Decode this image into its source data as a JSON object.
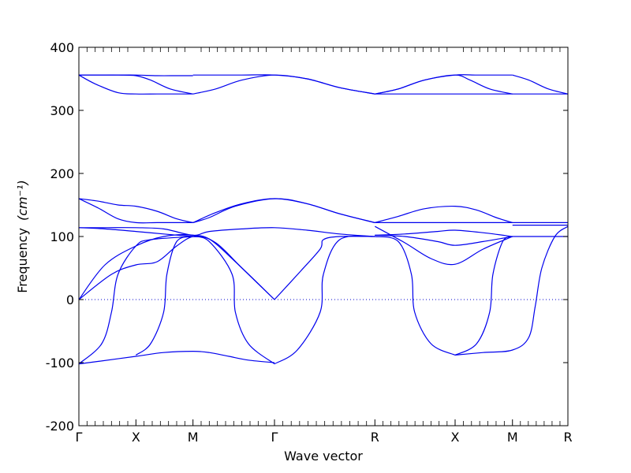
{
  "chart_data": {
    "type": "line",
    "title": "",
    "xlabel": "Wave vector",
    "ylabel": "Frequency",
    "ylabel_unit": "(cm⁻¹)",
    "ylim": [
      -200,
      400
    ],
    "yticks": [
      -200,
      -100,
      0,
      100,
      200,
      300,
      400
    ],
    "xlim": [
      0,
      7.5
    ],
    "high_symmetry_points": [
      {
        "label": "Γ",
        "x": 0
      },
      {
        "label": "X",
        "x": 0.875
      },
      {
        "label": "M",
        "x": 1.75
      },
      {
        "label": "Γ",
        "x": 3.0
      },
      {
        "label": "R",
        "x": 4.54
      },
      {
        "label": "X",
        "x": 5.77
      },
      {
        "label": "M",
        "x": 6.65
      },
      {
        "label": "R",
        "x": 7.5
      }
    ],
    "zero_line": true,
    "grid": false,
    "legend": "none",
    "series": [
      {
        "x": [
          0,
          0.3,
          0.6,
          0.875,
          1.2,
          1.5,
          1.75
        ],
        "values": [
          356,
          356,
          356,
          356,
          355,
          355,
          355
        ]
      },
      {
        "x": [
          1.75,
          2.1,
          2.5,
          3.0,
          3.5,
          4.0,
          4.54
        ],
        "values": [
          356,
          356,
          356,
          356,
          350,
          336,
          326
        ]
      },
      {
        "x": [
          0,
          0.25,
          0.6,
          0.875,
          1.2,
          1.5,
          1.75
        ],
        "values": [
          356,
          342,
          328,
          326,
          326,
          326,
          326
        ]
      },
      {
        "x": [
          1.75,
          2.1,
          2.5,
          3.0,
          3.5,
          4.0,
          4.54
        ],
        "values": [
          326,
          334,
          348,
          356,
          350,
          336,
          326
        ]
      },
      {
        "x": [
          0,
          0.3,
          0.6,
          0.875,
          1.1,
          1.4,
          1.75
        ],
        "values": [
          356,
          356,
          356,
          355,
          348,
          334,
          326
        ]
      },
      {
        "x": [
          4.54,
          4.9,
          5.3,
          5.77,
          6.1,
          6.4,
          6.65
        ],
        "values": [
          326,
          334,
          348,
          356,
          356,
          356,
          356
        ]
      },
      {
        "x": [
          6.65,
          6.9,
          7.2,
          7.5
        ],
        "values": [
          356,
          348,
          334,
          326
        ]
      },
      {
        "x": [
          4.54,
          4.9,
          5.3,
          5.77,
          6.0,
          6.3,
          6.65
        ],
        "values": [
          326,
          334,
          348,
          356,
          348,
          334,
          326
        ]
      },
      {
        "x": [
          4.54,
          5.0,
          5.5,
          6.0,
          6.65,
          7.0,
          7.5
        ],
        "values": [
          326,
          326,
          326,
          326,
          326,
          326,
          326
        ]
      },
      {
        "x": [
          0,
          0.3,
          0.6,
          0.875,
          1.2,
          1.5,
          1.75
        ],
        "values": [
          160,
          156,
          150,
          148,
          140,
          128,
          122
        ]
      },
      {
        "x": [
          0,
          0.3,
          0.6,
          0.875,
          1.2,
          1.5,
          1.75
        ],
        "values": [
          160,
          145,
          128,
          122,
          122,
          122,
          122
        ]
      },
      {
        "x": [
          1.75,
          2.1,
          2.5,
          3.0,
          3.5,
          4.0,
          4.54
        ],
        "values": [
          122,
          138,
          152,
          160,
          152,
          136,
          122
        ]
      },
      {
        "x": [
          1.75,
          2.0,
          2.4,
          3.0,
          3.5,
          4.0,
          4.54
        ],
        "values": [
          122,
          130,
          148,
          160,
          152,
          136,
          122
        ]
      },
      {
        "x": [
          4.54,
          4.9,
          5.3,
          5.77,
          6.1,
          6.4,
          6.65
        ],
        "values": [
          122,
          132,
          144,
          148,
          142,
          130,
          122
        ]
      },
      {
        "x": [
          4.54,
          5.2,
          5.77,
          6.65,
          7.5
        ],
        "values": [
          122,
          122,
          122,
          122,
          122
        ]
      },
      {
        "x": [
          6.65,
          7.0,
          7.5
        ],
        "values": [
          118,
          118,
          118
        ]
      },
      {
        "x": [
          0,
          0.4,
          0.875,
          1.3,
          1.75,
          2.0,
          2.5,
          3.0,
          3.5,
          4.0,
          4.54
        ],
        "values": [
          114,
          114,
          114,
          112,
          102,
          108,
          112,
          114,
          110,
          104,
          100
        ]
      },
      {
        "x": [
          0,
          0.4,
          0.875,
          1.3,
          1.75
        ],
        "values": [
          114,
          112,
          108,
          104,
          100
        ]
      },
      {
        "x": [
          0,
          0.5,
          0.875,
          1.2,
          1.5,
          1.75,
          2.0,
          2.4,
          3.0
        ],
        "values": [
          0,
          40,
          55,
          60,
          85,
          100,
          96,
          60,
          0
        ]
      },
      {
        "x": [
          0,
          0.4,
          0.875,
          1.3,
          1.75,
          2.1,
          2.5,
          3.0
        ],
        "values": [
          0,
          55,
          85,
          100,
          102,
          90,
          50,
          0
        ]
      },
      {
        "x": [
          0,
          0.3,
          0.875,
          1.3,
          1.75,
          2.0,
          2.3,
          2.6,
          3.0
        ],
        "values": [
          -102,
          -98,
          -90,
          -84,
          -82,
          -84,
          -90,
          -96,
          -100
        ]
      },
      {
        "x": [
          0,
          0.35,
          0.5,
          0.6,
          0.875,
          1.1,
          1.75
        ],
        "values": [
          -102,
          -70,
          -20,
          40,
          85,
          95,
          100
        ]
      },
      {
        "x": [
          0.875,
          1.1,
          1.3,
          1.35,
          1.5,
          1.75
        ],
        "values": [
          -88,
          -70,
          -20,
          40,
          92,
          100
        ]
      },
      {
        "x": [
          1.75,
          2.0,
          2.35,
          2.4,
          2.6,
          3.0
        ],
        "values": [
          100,
          92,
          40,
          -20,
          -70,
          -102
        ]
      },
      {
        "x": [
          3.0,
          3.4,
          3.7,
          3.75,
          4.0,
          4.54
        ],
        "values": [
          0,
          45,
          80,
          95,
          100,
          100
        ]
      },
      {
        "x": [
          3.0,
          3.35,
          3.7,
          3.75,
          4.0,
          4.54
        ],
        "values": [
          -102,
          -80,
          -20,
          40,
          95,
          100
        ]
      },
      {
        "x": [
          4.54,
          4.9,
          5.1,
          5.15,
          5.4,
          5.77
        ],
        "values": [
          100,
          92,
          40,
          -20,
          -70,
          -88
        ]
      },
      {
        "x": [
          4.54,
          5.0,
          5.4,
          5.77,
          6.2,
          6.65
        ],
        "values": [
          116,
          90,
          65,
          56,
          80,
          100
        ]
      },
      {
        "x": [
          4.54,
          5.0,
          5.5,
          5.77,
          6.2,
          6.65
        ],
        "values": [
          102,
          100,
          92,
          86,
          92,
          100
        ]
      },
      {
        "x": [
          4.54,
          5.0,
          5.5,
          5.77,
          6.2,
          6.65
        ],
        "values": [
          102,
          104,
          108,
          110,
          106,
          100
        ]
      },
      {
        "x": [
          5.77,
          6.1,
          6.3,
          6.35,
          6.5,
          6.65
        ],
        "values": [
          -88,
          -70,
          -20,
          40,
          92,
          100
        ]
      },
      {
        "x": [
          5.77,
          6.2,
          6.65,
          6.9,
          7.0,
          7.1,
          7.3,
          7.5
        ],
        "values": [
          -88,
          -84,
          -80,
          -60,
          -10,
          50,
          100,
          116
        ]
      },
      {
        "x": [
          6.65,
          7.0,
          7.5
        ],
        "values": [
          100,
          100,
          100
        ]
      }
    ]
  }
}
